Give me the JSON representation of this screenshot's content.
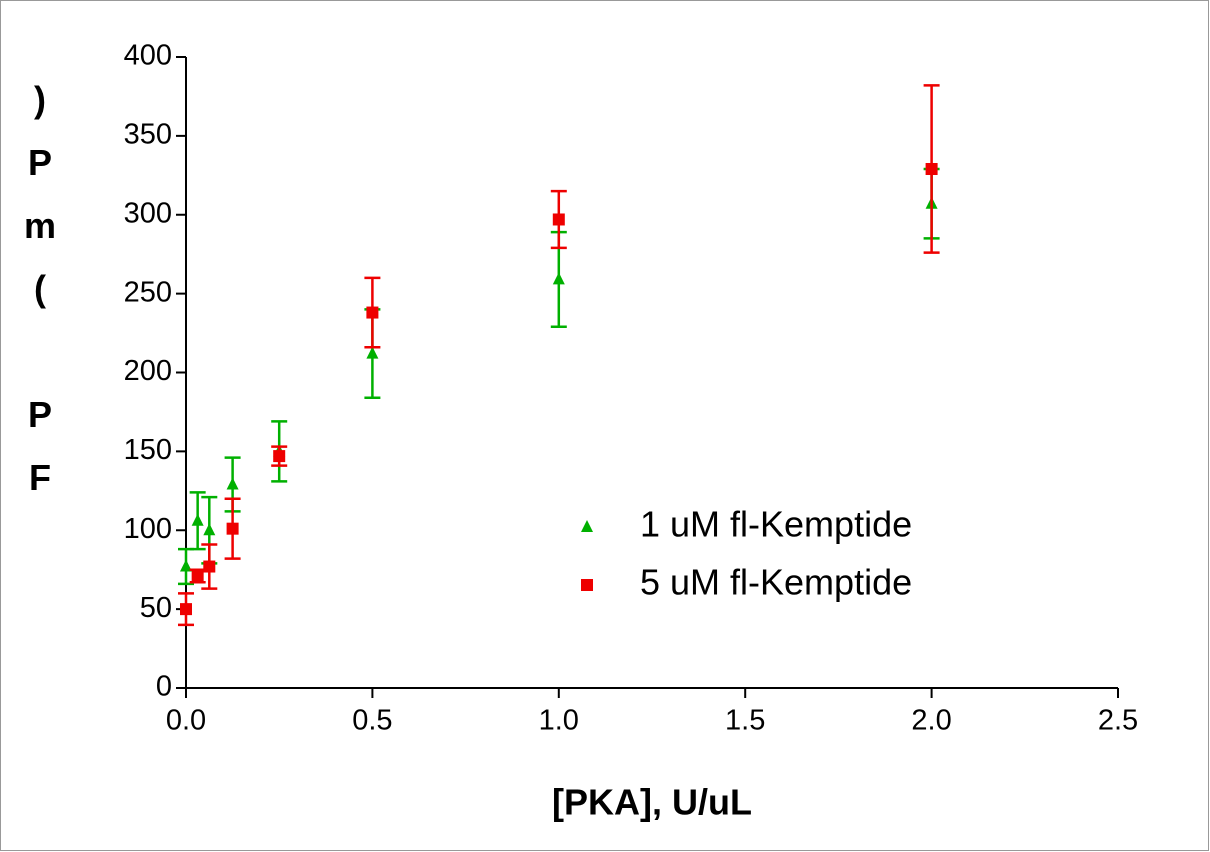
{
  "chart_data": {
    "type": "scatter",
    "xlabel": "[PKA], U/uL",
    "ylabel": "FP (mP)",
    "xlim": [
      0,
      2.5
    ],
    "xticks": [
      {
        "value": 0,
        "label": "0.0"
      },
      0.5,
      {
        "value": 1,
        "label": "1.0"
      },
      1.5,
      {
        "value": 2,
        "label": "2.0"
      },
      2.5
    ],
    "ylim": [
      0,
      400
    ],
    "yticks": [
      0,
      50,
      100,
      150,
      200,
      250,
      300,
      350,
      400
    ],
    "legend": "lower right",
    "x": [
      0,
      0.03125,
      0.0625,
      0.125,
      0.25,
      0.5,
      1,
      2
    ],
    "series": [
      {
        "name": "1 uM fl-Kemptide",
        "color": "#00b000",
        "marker": "triangle",
        "values": [
          77,
          106,
          100,
          129,
          150,
          212,
          259,
          307
        ],
        "errors": [
          11,
          18,
          21,
          17,
          19,
          28,
          30,
          22
        ]
      },
      {
        "name": "5 uM fl-Kemptide",
        "color": "#ee0000",
        "marker": "square",
        "values": [
          50,
          71,
          77,
          101,
          147,
          238,
          297,
          329
        ],
        "errors": [
          10,
          4,
          14,
          19,
          6,
          22,
          18,
          53
        ]
      }
    ]
  }
}
